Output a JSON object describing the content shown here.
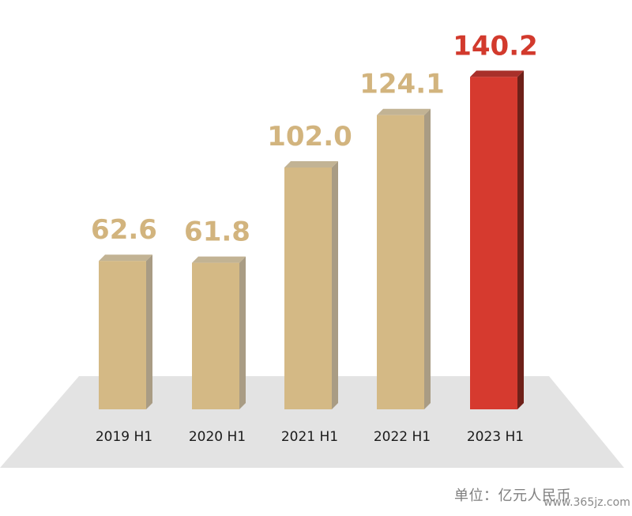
{
  "chart_data": {
    "type": "bar",
    "categories": [
      "2019 H1",
      "2020 H1",
      "2021 H1",
      "2022 H1",
      "2023 H1"
    ],
    "values": [
      62.6,
      61.8,
      102.0,
      124.1,
      140.2
    ],
    "value_labels": [
      "62.6",
      "61.8",
      "102.0",
      "124.1",
      "140.2"
    ],
    "highlight_index": 4,
    "ylim": [
      0,
      150
    ],
    "grid": false,
    "style": "3d"
  },
  "unit_label": "单位：亿元人民币",
  "watermark": "www.365jz.com",
  "colors": {
    "bar_front": "#d4b985",
    "bar_side": "#a99c84",
    "bar_top": "#c2b394",
    "highlight_front": "#d63a2f",
    "highlight_side": "#6e2019",
    "highlight_top": "#a8302a",
    "label_normal": "#d2b47e",
    "label_highlight": "#d23a2d",
    "floor": "#e3e3e3",
    "category_text": "#1a1a1a"
  }
}
